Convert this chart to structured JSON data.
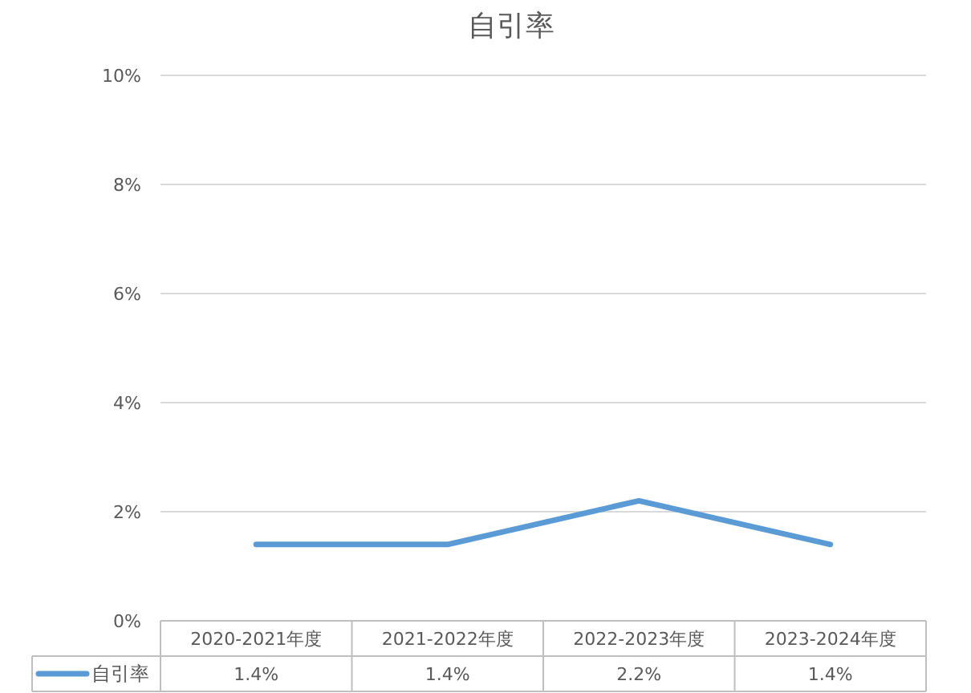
{
  "chart_data": {
    "type": "line",
    "title": "自引率",
    "categories": [
      "2020-2021年度",
      "2021-2022年度",
      "2022-2023年度",
      "2023-2024年度"
    ],
    "series": [
      {
        "name": "自引率",
        "color": "#5b9bd5",
        "values": [
          1.4,
          1.4,
          2.2,
          1.4
        ],
        "value_labels": [
          "1.4%",
          "1.4%",
          "2.2%",
          "1.4%"
        ]
      }
    ],
    "ylim": [
      0,
      10
    ],
    "yticks": [
      {
        "value": 0,
        "label": "0%"
      },
      {
        "value": 2,
        "label": "2%"
      },
      {
        "value": 4,
        "label": "4%"
      },
      {
        "value": 6,
        "label": "6%"
      },
      {
        "value": 8,
        "label": "8%"
      },
      {
        "value": 10,
        "label": "10%"
      }
    ],
    "grid": "y",
    "legend": "bottom",
    "marker": "none",
    "line_style": "solid"
  }
}
